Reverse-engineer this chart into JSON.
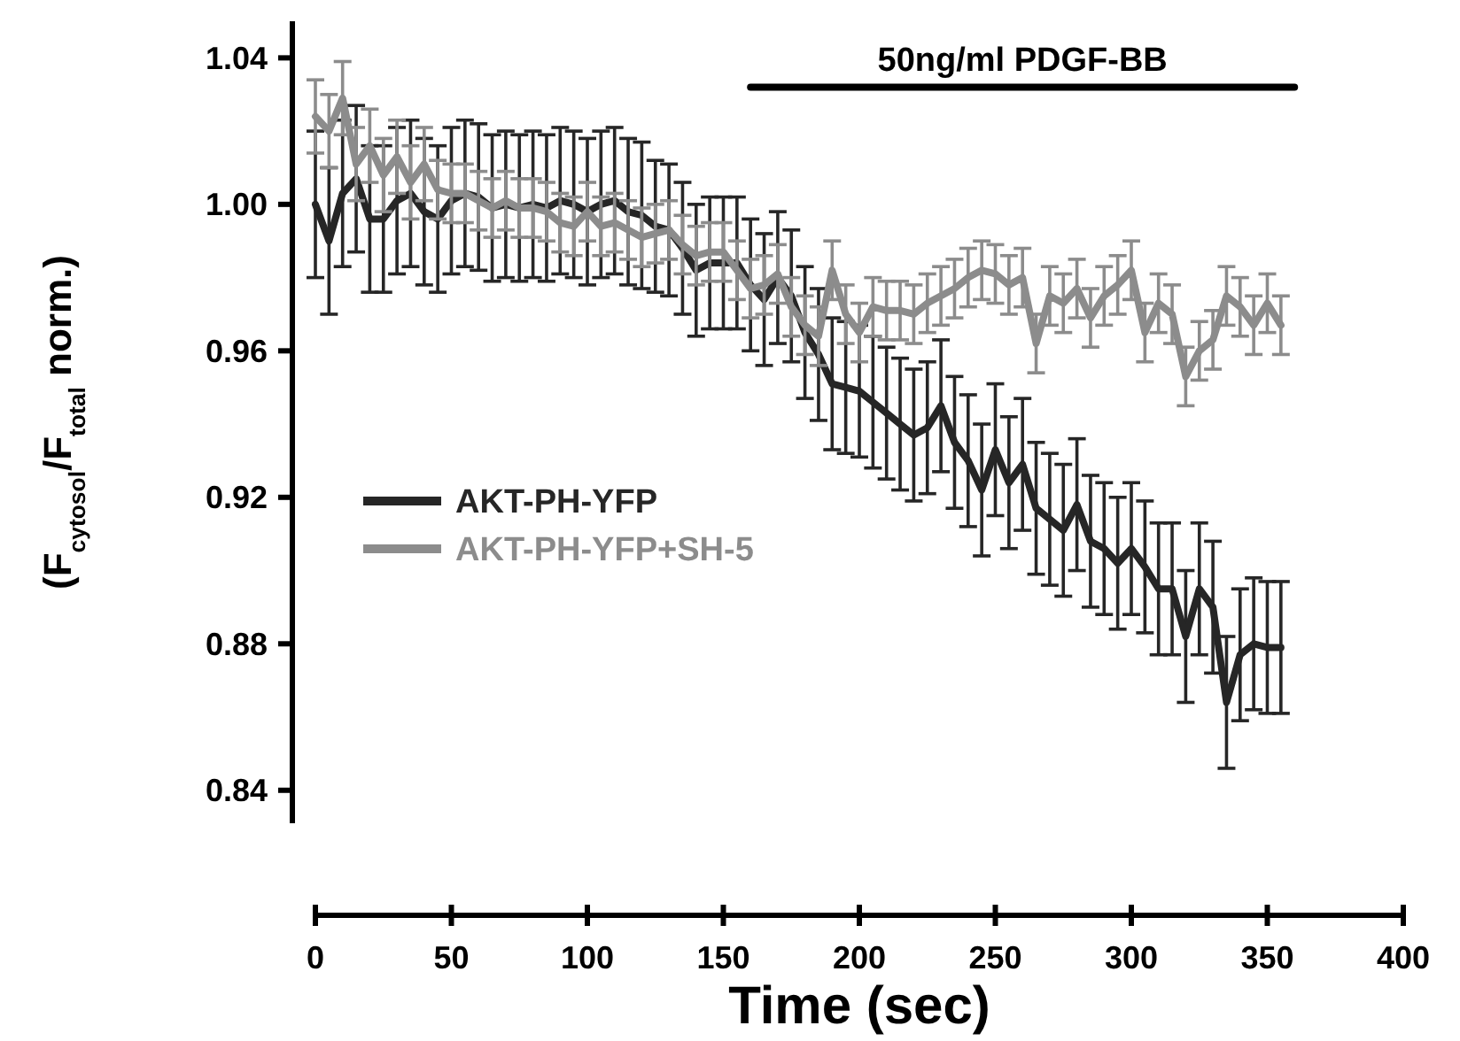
{
  "chart_data": {
    "type": "line",
    "xlabel": "Time (sec)",
    "ylabel": "(F$_{cytosol}$/F$_{total}$ norm.)",
    "x": [
      0,
      5,
      10,
      15,
      20,
      25,
      30,
      35,
      40,
      45,
      50,
      55,
      60,
      65,
      70,
      75,
      80,
      85,
      90,
      95,
      100,
      105,
      110,
      115,
      120,
      125,
      130,
      135,
      140,
      145,
      150,
      155,
      160,
      165,
      170,
      175,
      180,
      185,
      190,
      195,
      200,
      205,
      210,
      215,
      220,
      225,
      230,
      235,
      240,
      245,
      250,
      255,
      260,
      265,
      270,
      275,
      280,
      285,
      290,
      295,
      300,
      305,
      310,
      315,
      320,
      325,
      330,
      335,
      340,
      345,
      350,
      355
    ],
    "xlim": [
      0,
      400
    ],
    "xticks": [
      0,
      50,
      100,
      150,
      200,
      250,
      300,
      350,
      400
    ],
    "ylim": [
      0.831,
      1.05
    ],
    "yticks": [
      {
        "value": 0.84,
        "label": "0.84"
      },
      {
        "value": 0.88,
        "label": "0.88"
      },
      {
        "value": 0.92,
        "label": "0.92"
      },
      {
        "value": 0.96,
        "label": "0.96"
      },
      {
        "value": 1.0,
        "label": "1.00"
      },
      {
        "value": 1.04,
        "label": "1.04"
      }
    ],
    "grid": false,
    "legend": "left",
    "marker": "none",
    "line_style": "solid",
    "series": [
      {
        "name": "50ng/ml PDGF-BB",
        "color": "#000000",
        "x": [
          160,
          360
        ],
        "values": [
          1.032,
          1.032
        ]
      },
      {
        "name": "AKT-PH-YFP",
        "color": "#262626",
        "values": [
          1.0,
          0.99,
          1.003,
          1.007,
          0.996,
          0.996,
          1.001,
          1.003,
          0.998,
          0.996,
          1.001,
          1.003,
          1.002,
          0.999,
          1.0,
          0.999,
          1.0,
          0.999,
          1.001,
          1.0,
          0.998,
          1.0,
          1.001,
          0.998,
          0.997,
          0.994,
          0.993,
          0.988,
          0.982,
          0.984,
          0.984,
          0.984,
          0.978,
          0.974,
          0.98,
          0.975,
          0.965,
          0.959,
          0.951,
          0.95,
          0.949,
          0.946,
          0.943,
          0.94,
          0.937,
          0.939,
          0.945,
          0.935,
          0.93,
          0.922,
          0.933,
          0.924,
          0.929,
          0.917,
          0.914,
          0.911,
          0.918,
          0.908,
          0.906,
          0.902,
          0.906,
          0.901,
          0.895,
          0.895,
          0.882,
          0.895,
          0.89,
          0.864,
          0.877,
          0.88,
          0.879,
          0.879
        ],
        "errors": [
          0.02,
          0.02,
          0.02,
          0.02,
          0.02,
          0.02,
          0.02,
          0.02,
          0.02,
          0.02,
          0.02,
          0.02,
          0.02,
          0.02,
          0.02,
          0.02,
          0.02,
          0.02,
          0.02,
          0.02,
          0.02,
          0.02,
          0.02,
          0.02,
          0.02,
          0.018,
          0.018,
          0.018,
          0.018,
          0.018,
          0.018,
          0.018,
          0.018,
          0.018,
          0.018,
          0.018,
          0.018,
          0.018,
          0.018,
          0.018,
          0.018,
          0.018,
          0.018,
          0.018,
          0.018,
          0.018,
          0.018,
          0.018,
          0.018,
          0.018,
          0.018,
          0.018,
          0.018,
          0.018,
          0.018,
          0.018,
          0.018,
          0.018,
          0.018,
          0.018,
          0.018,
          0.018,
          0.018,
          0.018,
          0.018,
          0.018,
          0.018,
          0.018,
          0.018,
          0.018,
          0.018,
          0.018
        ]
      },
      {
        "name": "AKT-PH-YFP+SH-5",
        "color": "#8c8c8c",
        "values": [
          1.024,
          1.02,
          1.029,
          1.011,
          1.016,
          1.008,
          1.013,
          1.006,
          1.011,
          1.004,
          1.003,
          1.003,
          1.001,
          0.999,
          1.001,
          0.999,
          0.999,
          0.998,
          0.995,
          0.994,
          0.998,
          0.994,
          0.995,
          0.993,
          0.991,
          0.992,
          0.993,
          0.989,
          0.986,
          0.987,
          0.987,
          0.982,
          0.977,
          0.978,
          0.981,
          0.972,
          0.967,
          0.964,
          0.982,
          0.97,
          0.965,
          0.972,
          0.971,
          0.971,
          0.97,
          0.973,
          0.975,
          0.977,
          0.98,
          0.982,
          0.981,
          0.978,
          0.98,
          0.962,
          0.975,
          0.973,
          0.977,
          0.969,
          0.975,
          0.978,
          0.982,
          0.965,
          0.973,
          0.97,
          0.953,
          0.96,
          0.963,
          0.975,
          0.972,
          0.967,
          0.973,
          0.967
        ],
        "errors": [
          0.01,
          0.01,
          0.01,
          0.01,
          0.01,
          0.01,
          0.01,
          0.01,
          0.01,
          0.008,
          0.008,
          0.008,
          0.008,
          0.008,
          0.008,
          0.008,
          0.008,
          0.008,
          0.008,
          0.008,
          0.008,
          0.008,
          0.008,
          0.008,
          0.008,
          0.008,
          0.008,
          0.008,
          0.008,
          0.008,
          0.008,
          0.008,
          0.008,
          0.008,
          0.008,
          0.008,
          0.008,
          0.008,
          0.008,
          0.008,
          0.008,
          0.008,
          0.008,
          0.008,
          0.008,
          0.008,
          0.008,
          0.008,
          0.008,
          0.008,
          0.008,
          0.008,
          0.008,
          0.008,
          0.008,
          0.008,
          0.008,
          0.008,
          0.008,
          0.008,
          0.008,
          0.008,
          0.008,
          0.008,
          0.008,
          0.008,
          0.008,
          0.008,
          0.008,
          0.008,
          0.008,
          0.008
        ]
      }
    ]
  }
}
